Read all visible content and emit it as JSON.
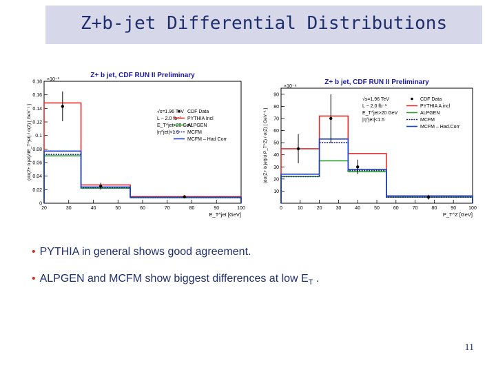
{
  "slide": {
    "title": "Z+b-jet Differential Distributions",
    "bullets": [
      {
        "text": "PYTHIA in general shows good agreement."
      },
      {
        "text_main": "ALPGEN and MCFM show biggest differences at low E",
        "text_sub": "T",
        "text_end": " ."
      }
    ],
    "page_number": "11"
  },
  "colors": {
    "title_band": "#d6d8ea",
    "title_text": "#1f2f6e",
    "bullet_marker": "#c0392b",
    "data": "#000000",
    "pythia": "#e32b2b",
    "alpgen": "#2ca02c",
    "mcfm": "#1a237e",
    "mcfm_corr": "#1f3fc4"
  },
  "chart_data": [
    {
      "type": "line",
      "title": "Z+ b jet, CDF RUN II Preliminary",
      "ylabel": "(dσ(Z+ b jet)/dE_T^jet) / σ(Z)   [ GeV⁻¹ ]",
      "xlabel": "E_T^jet  [GeV]",
      "exponent_label": "×10⁻³",
      "xlim": [
        20,
        100
      ],
      "ylim": [
        0,
        0.18
      ],
      "x_ticks": [
        "20",
        "30",
        "40",
        "50",
        "60",
        "70",
        "80",
        "90",
        "100"
      ],
      "y_ticks": [
        "0",
        "0.02",
        "0.04",
        "0.06",
        "0.08",
        "0.1",
        "0.12",
        "0.14",
        "0.16",
        "0.18"
      ],
      "bin_edges": [
        20,
        35,
        55,
        100
      ],
      "series": [
        {
          "name": "CDF Data",
          "kind": "points",
          "x": [
            27.5,
            43,
            77
          ],
          "values": [
            0.143,
            0.025,
            0.0095
          ],
          "err": [
            0.022,
            0.005,
            0.0025
          ]
        },
        {
          "name": "PYTHIA Incl",
          "kind": "hist",
          "values": [
            0.148,
            0.027,
            0.0098
          ]
        },
        {
          "name": "ALPGEN",
          "kind": "hist",
          "values": [
            0.07,
            0.022,
            0.0082
          ]
        },
        {
          "name": "MCFM",
          "kind": "hist",
          "dashed": true,
          "values": [
            0.072,
            0.023,
            0.0083
          ]
        },
        {
          "name": "MCFM – Had Corr",
          "kind": "hist",
          "values": [
            0.077,
            0.024,
            0.0088
          ]
        }
      ],
      "legend": {
        "lines": [
          "√s=1.96 TeV",
          "L ~ 2.0 fb⁻¹",
          "E_T^jet>20 GeV",
          "|η^jet|<1.5"
        ],
        "entries": [
          "CDF Data",
          "PYTHIA Incl",
          "ALPGEN",
          "MCFM",
          "MCFM – Had Corr"
        ]
      }
    },
    {
      "type": "line",
      "title": "Z+ b jet, CDF RUN II Preliminary",
      "ylabel": "(dσ(Z+ b jet)/d P_T^Z) / σ(Z)   [ GeV⁻¹ ]",
      "xlabel": "P_T^Z  [GeV]",
      "exponent_label": "×10⁻⁶",
      "xlim": [
        0,
        100
      ],
      "ylim": [
        0,
        95
      ],
      "x_ticks": [
        "0",
        "10",
        "20",
        "30",
        "40",
        "50",
        "60",
        "70",
        "80",
        "90",
        "100"
      ],
      "y_ticks": [
        "10",
        "20",
        "30",
        "40",
        "50",
        "60",
        "70",
        "80",
        "90"
      ],
      "bin_edges": [
        0,
        20,
        35,
        55,
        100
      ],
      "series": [
        {
          "name": "CDF Data",
          "kind": "points",
          "x": [
            9,
            26,
            40,
            77
          ],
          "values": [
            45,
            70,
            30,
            5
          ],
          "err": [
            12,
            20,
            6,
            2
          ]
        },
        {
          "name": "PYTHIA A incl",
          "kind": "hist",
          "values": [
            45,
            72,
            41,
            6
          ]
        },
        {
          "name": "ALPGEN",
          "kind": "hist",
          "values": [
            22,
            35,
            26,
            5
          ]
        },
        {
          "name": "MCFM",
          "kind": "hist",
          "dashed": true,
          "values": [
            22,
            50,
            27,
            5
          ]
        },
        {
          "name": "MCFM – Had.Corr",
          "kind": "hist",
          "values": [
            24,
            53,
            28,
            6
          ]
        }
      ],
      "legend": {
        "lines": [
          "√s=1.96 TeV",
          "L ~ 2.0 fb⁻¹",
          "E_T^jet>20 GeV",
          "|η^jet|<1.5"
        ],
        "entries": [
          "CDF Data",
          "PYTHIA A incl",
          "ALPGEN",
          "MCFM",
          "MCFM – Had.Corr"
        ]
      }
    }
  ]
}
